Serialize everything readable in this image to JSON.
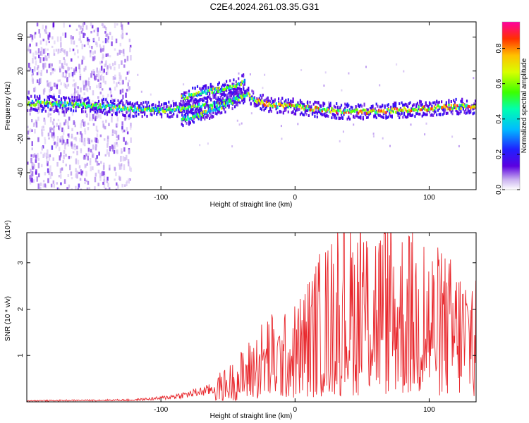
{
  "title": "C2E4.2024.261.03.35.G31",
  "chart_data": [
    {
      "type": "heatmap",
      "xlabel": "Height of straight line (km)",
      "ylabel": "Frequency (Hz)",
      "xlim": [
        -200,
        135
      ],
      "ylim": [
        -50,
        49
      ],
      "x_ticks": [
        -100,
        0,
        100
      ],
      "y_ticks": [
        -40,
        -20,
        0,
        20,
        40
      ],
      "colorbar": {
        "label": "Normalized spectral amplitude",
        "range": [
          0,
          0.95
        ],
        "ticks": [
          "0.0",
          "0.2",
          "0.4",
          "0.6",
          "0.8"
        ]
      },
      "ridges": [
        {
          "name": "main",
          "x": [
            -200,
            -160,
            -130,
            -100,
            -80,
            -60,
            -45,
            -36,
            -30,
            -20,
            0,
            20,
            40,
            60,
            80,
            100,
            120,
            135
          ],
          "y": [
            1,
            0,
            -2,
            -3,
            -2,
            1,
            4,
            6,
            3,
            0,
            -1,
            -3,
            -4,
            -4,
            -3,
            -2,
            -1,
            -1
          ]
        },
        {
          "name": "upper",
          "x": [
            -85,
            -75,
            -65,
            -55,
            -45,
            -38
          ],
          "y": [
            4,
            6,
            8,
            9,
            11,
            14
          ]
        },
        {
          "name": "lower",
          "x": [
            -85,
            -75,
            -65,
            -55,
            -45,
            -38
          ],
          "y": [
            -8,
            -7,
            -4,
            -1,
            3,
            6
          ]
        }
      ],
      "noise_region_x": [
        -200,
        -123
      ]
    },
    {
      "type": "line",
      "xlabel": "Height of straight line (km)",
      "ylabel": "SNR (10 * v/v)",
      "y_multiplier": "(x10⁴)",
      "xlim": [
        -200,
        135
      ],
      "ylim": [
        0,
        3.65
      ],
      "x_ticks": [
        -100,
        0,
        100
      ],
      "y_ticks": [
        1,
        2,
        3
      ],
      "series": [
        {
          "color": "#e8262b",
          "envelope_x": [
            -200,
            -160,
            -120,
            -100,
            -80,
            -60,
            -45,
            -30,
            -20,
            -10,
            0,
            10,
            20,
            40,
            60,
            80,
            100,
            120,
            135
          ],
          "envelope_y": [
            0.03,
            0.04,
            0.05,
            0.1,
            0.2,
            0.35,
            0.6,
            1.0,
            1.3,
            1.2,
            1.4,
            1.8,
            2.2,
            2.6,
            2.7,
            2.5,
            2.3,
            2.0,
            1.9
          ]
        }
      ]
    }
  ]
}
